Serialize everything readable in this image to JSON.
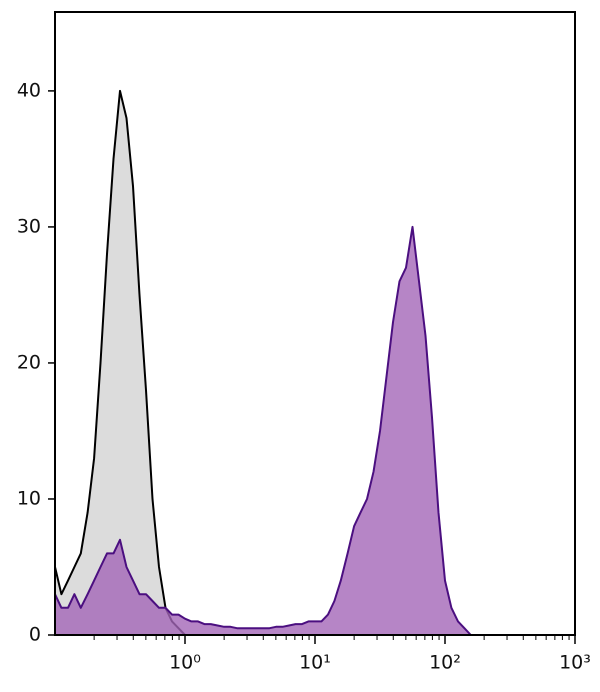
{
  "chart_data": {
    "type": "histogram",
    "x": [
      0.1,
      0.112,
      0.126,
      0.141,
      0.158,
      0.178,
      0.2,
      0.224,
      0.251,
      0.282,
      0.316,
      0.355,
      0.398,
      0.447,
      0.501,
      0.562,
      0.631,
      0.708,
      0.794,
      0.891,
      1.0,
      1.12,
      1.26,
      1.41,
      1.58,
      1.78,
      2.0,
      2.24,
      2.51,
      2.82,
      3.16,
      3.55,
      3.98,
      4.47,
      5.01,
      5.62,
      6.31,
      7.08,
      7.94,
      8.91,
      10,
      11.2,
      12.6,
      14.1,
      15.8,
      17.8,
      20,
      22.4,
      25.1,
      28.2,
      31.6,
      35.5,
      39.8,
      44.7,
      50.1,
      56.2,
      63.1,
      70.8,
      79.4,
      89.1,
      100,
      112,
      126,
      141,
      158
    ],
    "series": [
      {
        "color": "#000000",
        "fill": "#dcdcdc",
        "values": [
          5,
          3,
          4,
          5,
          6,
          9,
          13,
          20,
          28,
          35,
          40,
          38,
          33,
          25,
          18,
          10,
          5,
          2,
          1,
          0.5,
          0,
          0,
          0,
          0,
          0,
          0,
          0,
          0,
          0,
          0,
          0,
          0,
          0,
          0,
          0,
          0,
          0,
          0,
          0,
          0,
          0,
          0,
          0,
          0,
          0,
          0,
          0,
          0,
          0,
          0,
          0,
          0,
          0,
          0,
          0,
          0,
          0,
          0,
          0,
          0,
          0,
          0,
          0,
          0,
          0
        ]
      },
      {
        "color": "#4b0f80",
        "fill": "#a466b8",
        "values": [
          3,
          2,
          2,
          3,
          2,
          3,
          4,
          5,
          6,
          6,
          7,
          5,
          4,
          3,
          3,
          2.5,
          2,
          2,
          1.5,
          1.5,
          1.2,
          1,
          1,
          0.8,
          0.8,
          0.7,
          0.6,
          0.6,
          0.5,
          0.5,
          0.5,
          0.5,
          0.5,
          0.5,
          0.6,
          0.6,
          0.7,
          0.8,
          0.8,
          1,
          1,
          1,
          1.5,
          2.5,
          4,
          6,
          8,
          9,
          10,
          12,
          15,
          19,
          23,
          26,
          27,
          30,
          26,
          22,
          16,
          9,
          4,
          2,
          1,
          0.5,
          0
        ]
      }
    ],
    "xlog": true,
    "xlim": [
      0.1,
      1000
    ],
    "xticks": [
      {
        "value": 1,
        "label": "10⁰"
      },
      {
        "value": 10,
        "label": "10¹"
      },
      {
        "value": 100,
        "label": "10²"
      },
      {
        "value": 1000,
        "label": "10³"
      }
    ],
    "minor_ticks": true,
    "ylim": [
      0,
      45.8
    ],
    "yticks": [
      0,
      10,
      20,
      30,
      40
    ]
  }
}
